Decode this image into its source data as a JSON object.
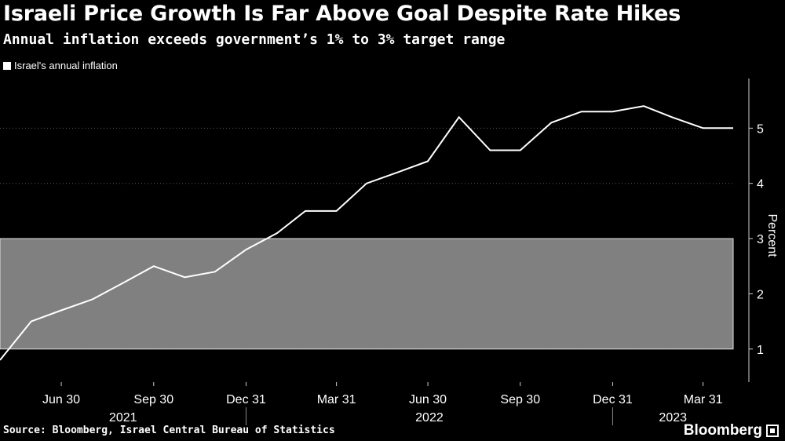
{
  "header": {
    "title": "Israeli Price Growth Is Far Above Goal Despite Rate Hikes",
    "subtitle": "Annual inflation exceeds government’s 1% to 3% target range"
  },
  "footer": {
    "source": "Source: Bloomberg, Israel Central Bureau of Statistics",
    "brand": "Bloomberg"
  },
  "colors": {
    "background": "#000000",
    "line": "#ffffff",
    "target_band": "#808080"
  },
  "chart_data": {
    "type": "line",
    "legend": "Israel's annual inflation",
    "ylabel": "Percent",
    "ylim": [
      0.4,
      5.9
    ],
    "yticks": [
      1,
      2,
      3,
      4,
      5
    ],
    "target_range": [
      1,
      3
    ],
    "x_start": "2021-04-30",
    "x_end": "2023-04-30",
    "series": [
      {
        "name": "Israel's annual inflation",
        "x": [
          "2021-04-30",
          "2021-05-31",
          "2021-06-30",
          "2021-07-31",
          "2021-08-31",
          "2021-09-30",
          "2021-10-31",
          "2021-11-30",
          "2021-12-31",
          "2022-01-31",
          "2022-02-28",
          "2022-03-31",
          "2022-04-30",
          "2022-05-31",
          "2022-06-30",
          "2022-07-31",
          "2022-08-31",
          "2022-09-30",
          "2022-10-31",
          "2022-11-30",
          "2022-12-31",
          "2023-01-31",
          "2023-02-28",
          "2023-03-31",
          "2023-04-30"
        ],
        "values": [
          0.8,
          1.5,
          1.7,
          1.9,
          2.2,
          2.5,
          2.3,
          2.4,
          2.8,
          3.1,
          3.5,
          3.5,
          4.0,
          4.2,
          4.4,
          5.2,
          4.6,
          4.6,
          5.1,
          5.3,
          5.3,
          5.4,
          5.2,
          5.0,
          5.0
        ]
      }
    ],
    "x_tick_labels": [
      {
        "date": "2021-06-30",
        "label": "Jun 30"
      },
      {
        "date": "2021-09-30",
        "label": "Sep 30"
      },
      {
        "date": "2021-12-31",
        "label": "Dec 31"
      },
      {
        "date": "2022-03-31",
        "label": "Mar 31"
      },
      {
        "date": "2022-06-30",
        "label": "Jun 30"
      },
      {
        "date": "2022-09-30",
        "label": "Sep 30"
      },
      {
        "date": "2022-12-31",
        "label": "Dec 31"
      },
      {
        "date": "2023-03-31",
        "label": "Mar 31"
      }
    ],
    "year_labels": [
      {
        "label": "2021",
        "start": "2021-04-30",
        "end": "2021-12-31"
      },
      {
        "label": "2022",
        "start": "2021-12-31",
        "end": "2022-12-31"
      },
      {
        "label": "2023",
        "start": "2022-12-31",
        "end": "2023-04-30"
      }
    ],
    "year_dividers": [
      "2021-12-31",
      "2022-12-31"
    ]
  }
}
